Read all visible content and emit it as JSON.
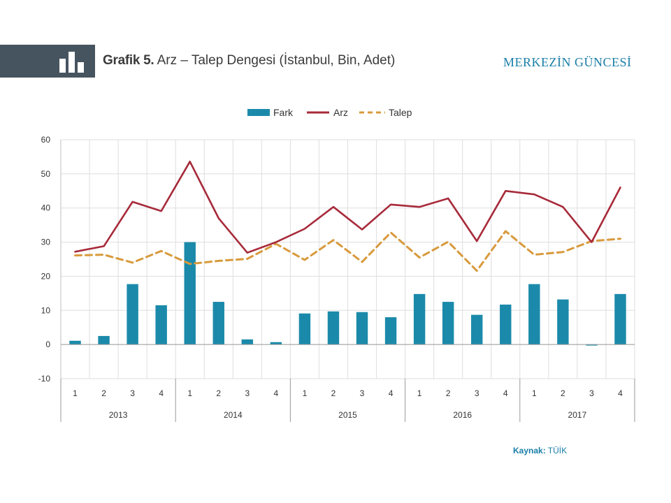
{
  "header": {
    "title_prefix": "Grafik 5.",
    "title_text": " Arz – Talep Dengesi (İstanbul, Bin, Adet)",
    "brand": "MERKEZİN GÜNCESİ",
    "banner_icon": "bar-chart-icon"
  },
  "colors": {
    "banner": "#46545f",
    "fark": "#1b8aaa",
    "arz": "#a72a3a",
    "talep": "#d89a3c",
    "brand": "#1a7ea8"
  },
  "chart_data": {
    "type": "bar",
    "title": "",
    "xlabel": "",
    "ylabel": "",
    "ylim": [
      -10,
      60
    ],
    "yticks": [
      -10,
      0,
      10,
      20,
      30,
      40,
      50,
      60
    ],
    "grid": true,
    "legend_position": "top",
    "categories": [
      "1",
      "2",
      "3",
      "4",
      "1",
      "2",
      "3",
      "4",
      "1",
      "2",
      "3",
      "4",
      "1",
      "2",
      "3",
      "4",
      "1",
      "2",
      "3",
      "4"
    ],
    "groups": [
      {
        "label": "2013",
        "count": 4
      },
      {
        "label": "2014",
        "count": 4
      },
      {
        "label": "2015",
        "count": 4
      },
      {
        "label": "2016",
        "count": 4
      },
      {
        "label": "2017",
        "count": 4
      }
    ],
    "series": [
      {
        "name": "Fark",
        "type": "bar",
        "values": [
          1.1,
          2.5,
          17.7,
          11.5,
          30.0,
          12.5,
          1.5,
          0.7,
          9.1,
          9.7,
          9.5,
          8.0,
          14.8,
          12.5,
          8.7,
          11.7,
          17.7,
          13.2,
          -0.3,
          14.8
        ]
      },
      {
        "name": "Arz",
        "type": "line",
        "values": [
          27.2,
          28.8,
          41.8,
          39.1,
          53.6,
          37.0,
          26.9,
          30.0,
          33.9,
          40.3,
          33.7,
          41.0,
          40.3,
          42.8,
          30.3,
          45.0,
          44.0,
          40.3,
          30.0,
          46.0
        ]
      },
      {
        "name": "Talep",
        "type": "line",
        "dashed": true,
        "values": [
          26.1,
          26.3,
          24.0,
          27.4,
          23.6,
          24.5,
          25.1,
          29.5,
          24.8,
          30.6,
          24.2,
          32.8,
          25.5,
          30.1,
          21.6,
          33.2,
          26.3,
          27.1,
          30.3,
          31.0
        ]
      }
    ]
  },
  "footer": {
    "source_label": "Kaynak:",
    "source_value": " TÜİK"
  }
}
